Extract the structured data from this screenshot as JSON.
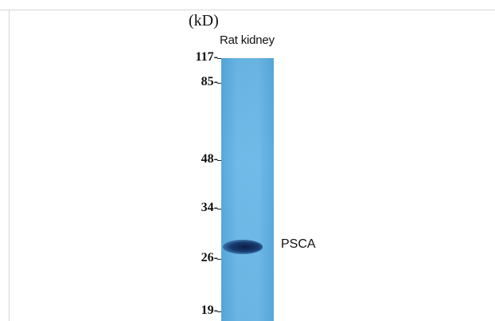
{
  "units": "(kD)",
  "lane_label": "Rat kidney",
  "markers": [
    {
      "label": "117-",
      "kd": 117
    },
    {
      "label": "85-",
      "kd": 85
    },
    {
      "label": "48-",
      "kd": 48
    },
    {
      "label": "34-",
      "kd": 34
    },
    {
      "label": "26-",
      "kd": 26
    },
    {
      "label": "19-",
      "kd": 19
    }
  ],
  "band_label": "PSCA",
  "colors": {
    "lane": "#6fbae8",
    "band": "#0b1f45",
    "frame": "#d6d6d6"
  }
}
